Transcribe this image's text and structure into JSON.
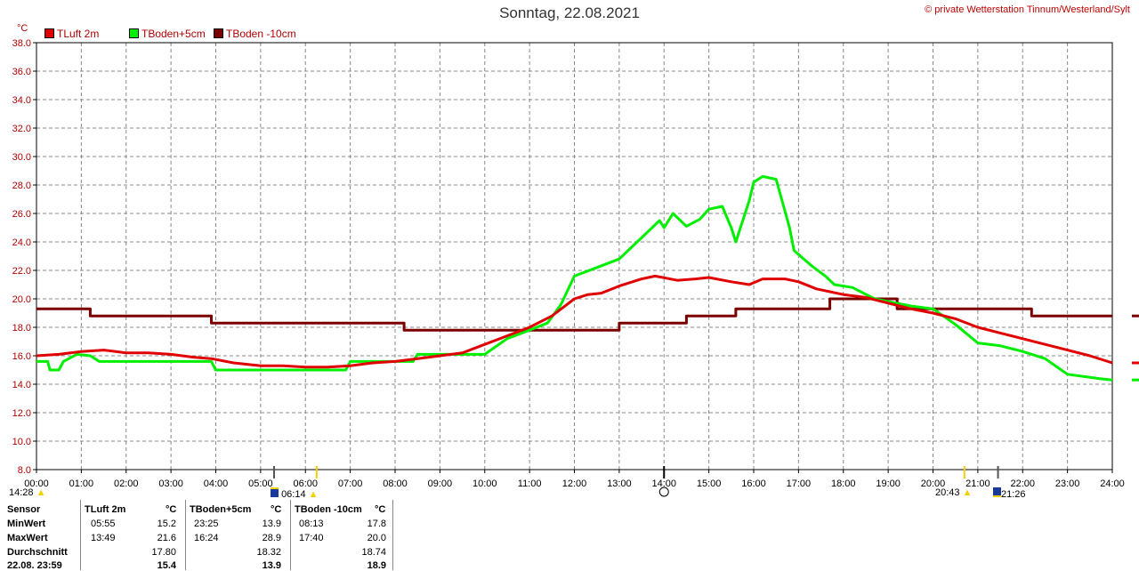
{
  "title": "Sonntag, 22.08.2021",
  "credit": "© private Wetterstation Tinnum/Westerland/Sylt",
  "unit": "°C",
  "events": [
    {
      "label": "14:28",
      "marker": "sun"
    },
    {
      "label": "06:14",
      "marker": "sunrise"
    },
    {
      "label": "20:43",
      "marker": "sun"
    },
    {
      "label": "21:26",
      "marker": "sunset"
    }
  ],
  "colors": {
    "tluft": "#e00000",
    "tboden5": "#00ee00",
    "tboden10": "#7a0000",
    "grid": "#888888"
  },
  "chart_data": {
    "type": "line",
    "title": "Sonntag, 22.08.2021",
    "xlabel": "",
    "ylabel": "°C",
    "ylim": [
      8.0,
      38.0
    ],
    "xlim": [
      0,
      24
    ],
    "grid": true,
    "legend_position": "top-left",
    "yticks": [
      "8.0",
      "10.0",
      "12.0",
      "14.0",
      "16.0",
      "18.0",
      "20.0",
      "22.0",
      "24.0",
      "26.0",
      "28.0",
      "30.0",
      "32.0",
      "34.0",
      "36.0",
      "38.0"
    ],
    "xticks": [
      "00:00",
      "01:00",
      "02:00",
      "03:00",
      "04:00",
      "05:00",
      "06:00",
      "07:00",
      "08:00",
      "09:00",
      "10:00",
      "11:00",
      "12:00",
      "13:00",
      "14:00",
      "15:00",
      "16:00",
      "17:00",
      "18:00",
      "19:00",
      "20:00",
      "21:00",
      "22:00",
      "23:00",
      "24:00"
    ],
    "series": [
      {
        "name": "TLuft 2m",
        "color": "#e00000",
        "x": [
          0,
          0.5,
          1,
          1.5,
          2,
          2.5,
          3,
          3.5,
          3.9,
          4.4,
          5,
          5.5,
          6,
          6.5,
          7,
          7.5,
          8,
          8.5,
          9,
          9.5,
          10,
          10.5,
          11,
          11.5,
          12,
          12.3,
          12.6,
          13,
          13.5,
          13.8,
          14.3,
          14.7,
          15,
          15.5,
          15.9,
          16.2,
          16.7,
          17,
          17.4,
          18,
          18.5,
          19,
          19.5,
          20,
          20.5,
          21,
          21.5,
          22,
          22.5,
          23,
          23.5,
          24
        ],
        "y": [
          16.0,
          16.1,
          16.3,
          16.4,
          16.2,
          16.2,
          16.1,
          15.9,
          15.8,
          15.5,
          15.3,
          15.3,
          15.2,
          15.2,
          15.3,
          15.5,
          15.6,
          15.8,
          16.0,
          16.2,
          16.8,
          17.4,
          18.0,
          18.8,
          20.0,
          20.3,
          20.4,
          20.9,
          21.4,
          21.6,
          21.3,
          21.4,
          21.5,
          21.2,
          21.0,
          21.4,
          21.4,
          21.2,
          20.7,
          20.3,
          20.1,
          19.7,
          19.3,
          19.0,
          18.6,
          18.0,
          17.6,
          17.2,
          16.8,
          16.4,
          16.0,
          15.5
        ]
      },
      {
        "name": "TBoden+5cm",
        "color": "#00ee00",
        "x": [
          0,
          0.25,
          0.3,
          0.5,
          0.6,
          0.9,
          1.2,
          1.4,
          1.5,
          3.9,
          4,
          5,
          6,
          6.9,
          7,
          7.5,
          8,
          8.4,
          8.5,
          9,
          10,
          10.5,
          11,
          11.4,
          11.7,
          12,
          12.5,
          13,
          13.4,
          13.6,
          13.9,
          14,
          14.2,
          14.5,
          14.8,
          15,
          15.3,
          15.5,
          15.6,
          15.9,
          16,
          16.2,
          16.5,
          16.8,
          16.9,
          17.3,
          17.6,
          17.8,
          18.2,
          18.7,
          19.5,
          20,
          20.5,
          21,
          21.5,
          22,
          22.5,
          23,
          23.7,
          24
        ],
        "y": [
          15.6,
          15.6,
          15.0,
          15.0,
          15.6,
          16.1,
          16.0,
          15.6,
          15.6,
          15.6,
          15.0,
          15.0,
          15.0,
          15.0,
          15.6,
          15.6,
          15.6,
          15.6,
          16.1,
          16.1,
          16.1,
          17.2,
          17.8,
          18.3,
          19.6,
          21.6,
          22.2,
          22.8,
          24.0,
          24.6,
          25.5,
          25.0,
          26.0,
          25.1,
          25.6,
          26.3,
          26.5,
          25.0,
          24.0,
          26.9,
          28.2,
          28.6,
          28.4,
          25.0,
          23.4,
          22.3,
          21.6,
          21.0,
          20.8,
          20.0,
          19.5,
          19.3,
          18.2,
          16.9,
          16.7,
          16.3,
          15.8,
          14.7,
          14.4,
          14.3
        ]
      },
      {
        "name": "TBoden -10cm",
        "color": "#7a0000",
        "x": [
          0,
          1.2,
          1.2,
          3.9,
          3.9,
          8.2,
          8.2,
          13.0,
          13.0,
          14.5,
          14.5,
          15.6,
          15.6,
          17.7,
          17.7,
          19.2,
          19.2,
          22.2,
          22.2,
          24
        ],
        "y": [
          19.3,
          19.3,
          18.8,
          18.8,
          18.3,
          18.3,
          17.8,
          17.8,
          18.3,
          18.3,
          18.8,
          18.8,
          19.3,
          19.3,
          20.0,
          20.0,
          19.3,
          19.3,
          18.8,
          18.8
        ]
      }
    ]
  },
  "stats": {
    "headers": {
      "sensor": "Sensor",
      "tluft": "TLuft 2m",
      "unit1": "°C",
      "tboden5": "TBoden+5cm",
      "unit2": "°C",
      "tboden10": "TBoden -10cm",
      "unit3": "°C"
    },
    "rows": [
      {
        "label": "MinWert",
        "t1": "05:55",
        "v1": "15.2",
        "t2": "23:25",
        "v2": "13.9",
        "t3": "08:13",
        "v3": "17.8"
      },
      {
        "label": "MaxWert",
        "t1": "13:49",
        "v1": "21.6",
        "t2": "16:24",
        "v2": "28.9",
        "t3": "17:40",
        "v3": "20.0"
      },
      {
        "label": "Durchschnitt",
        "t1": "",
        "v1": "17.80",
        "t2": "",
        "v2": "18.32",
        "t3": "",
        "v3": "18.74"
      },
      {
        "label": "22.08. 23:59",
        "t1": "",
        "v1": "15.4",
        "t2": "",
        "v2": "13.9",
        "t3": "",
        "v3": "18.9"
      }
    ]
  }
}
